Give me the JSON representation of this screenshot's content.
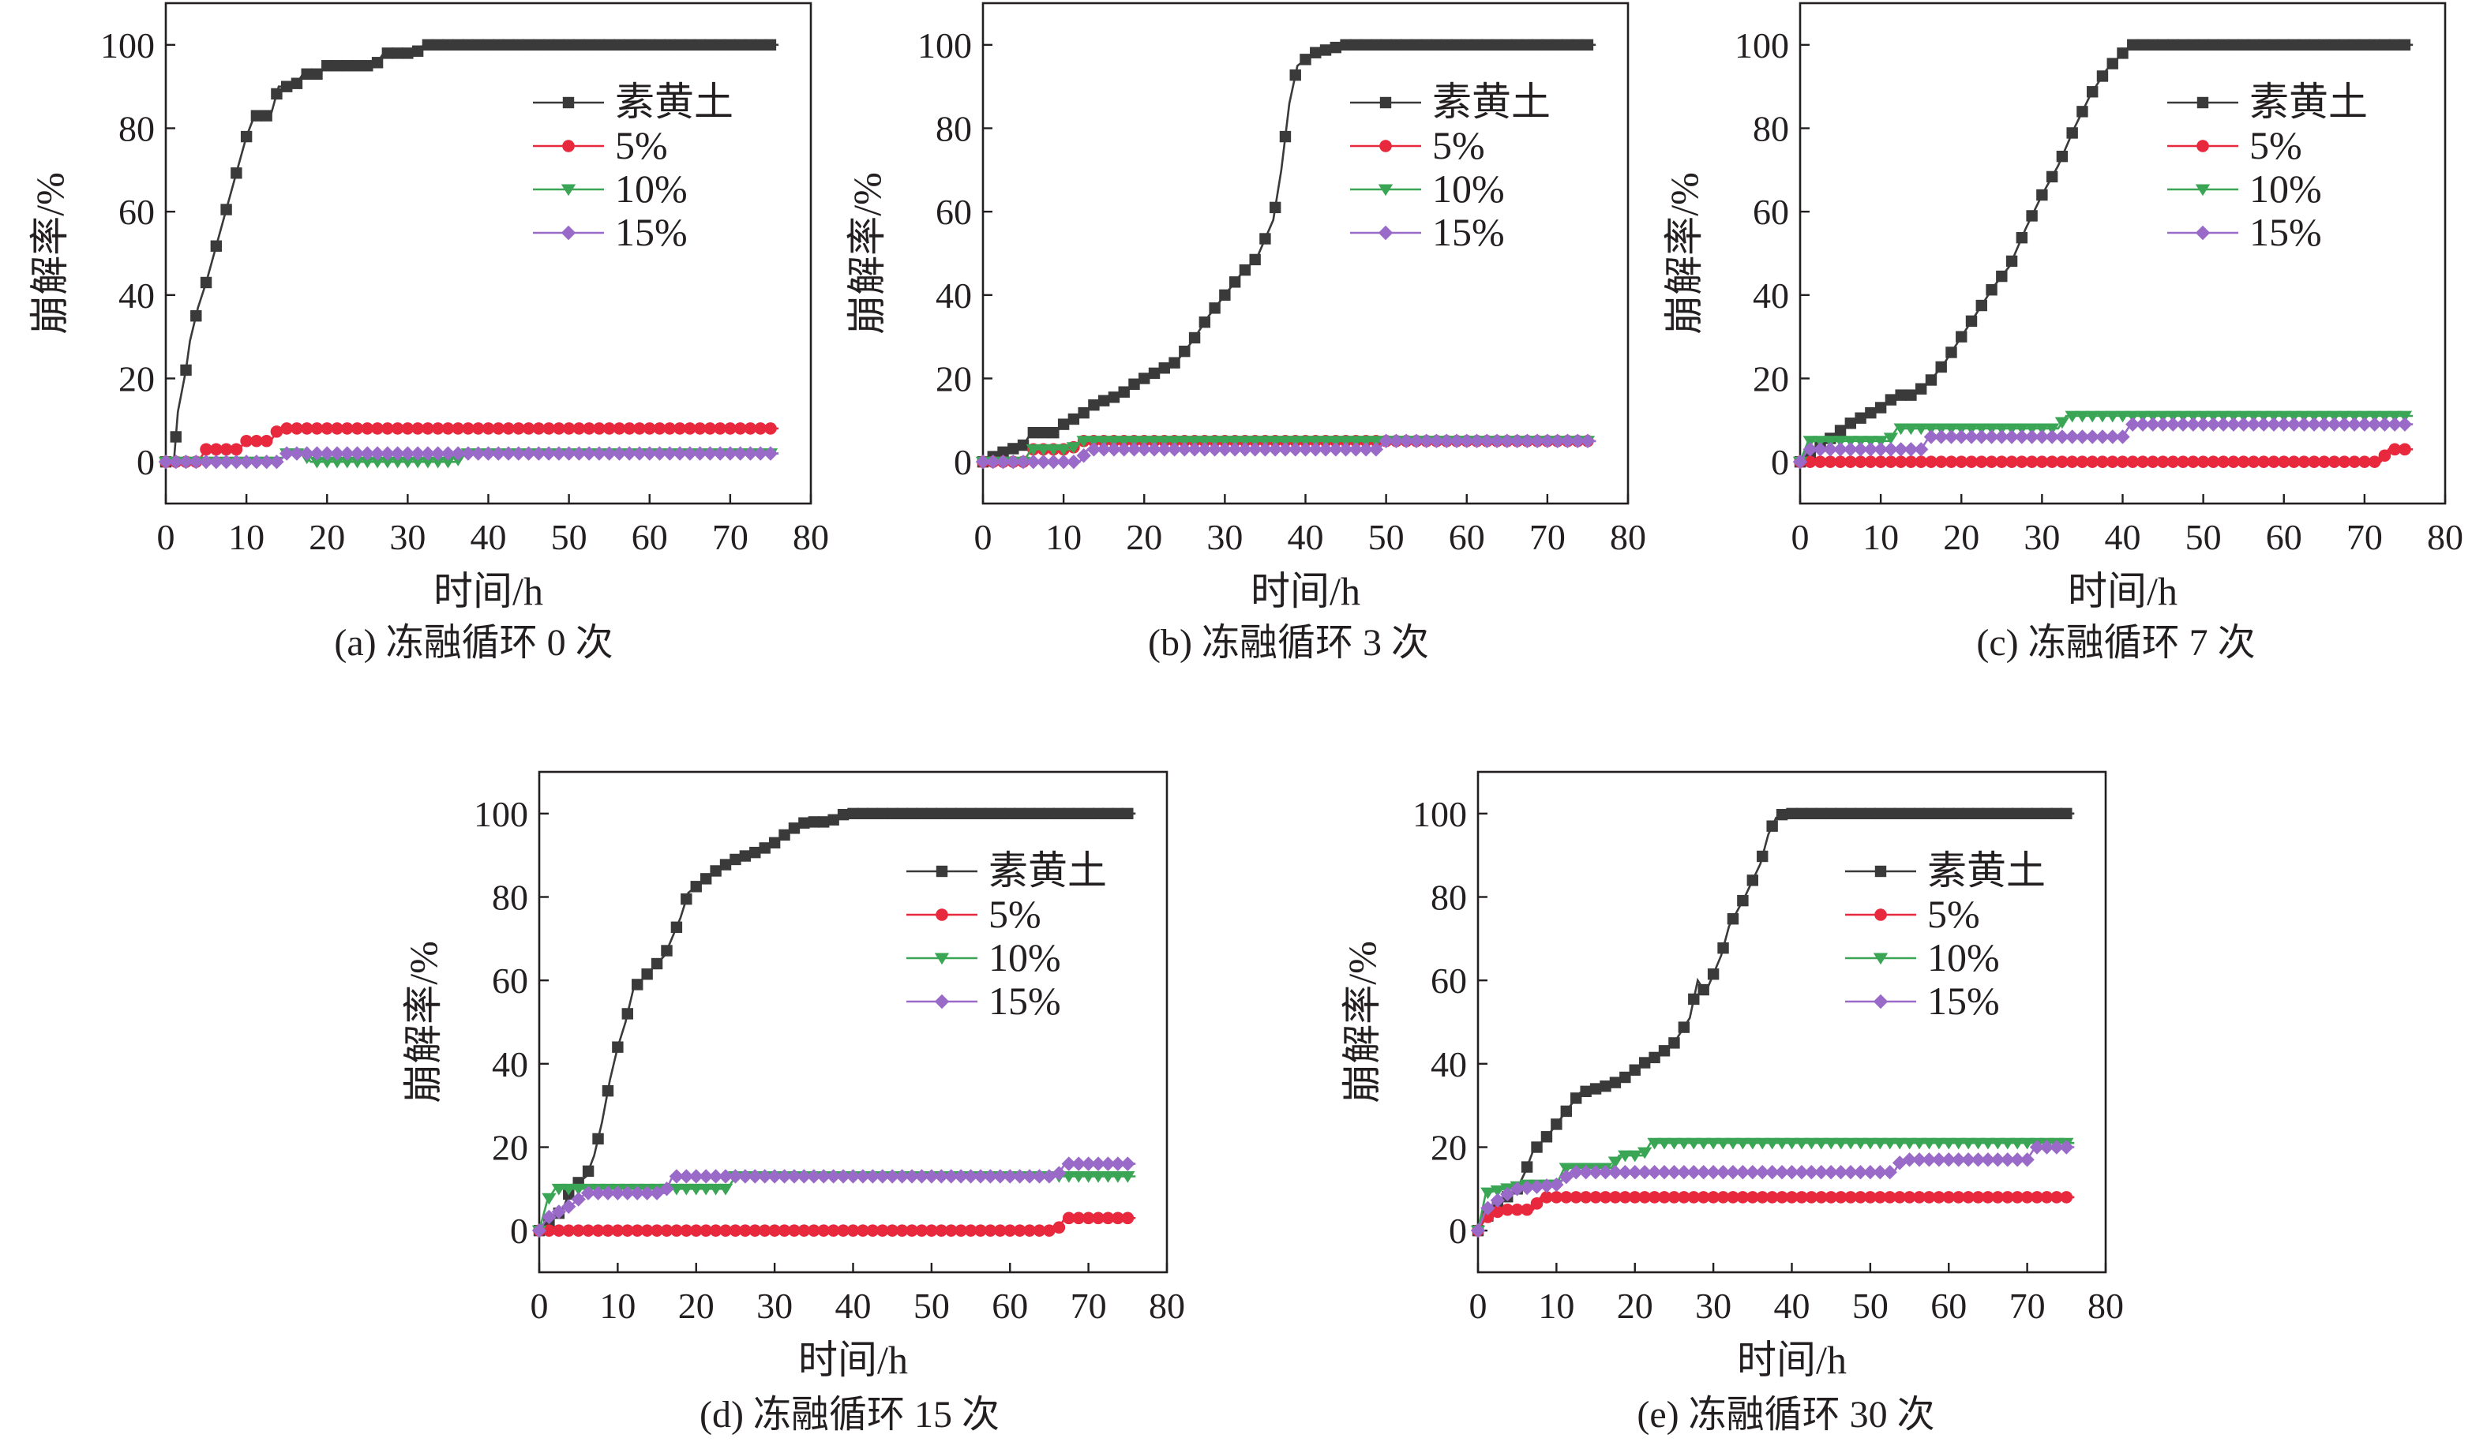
{
  "figure": {
    "colors": {
      "素黄土": "#3a3a3a",
      "5%": "#e8283c",
      "10%": "#3aa655",
      "15%": "#9a6ac8",
      "axis": "#231f20"
    },
    "markers": {
      "素黄土": "square",
      "5%": "circle",
      "10%": "triangle-down",
      "15%": "diamond"
    }
  },
  "chart_data": [
    {
      "type": "line",
      "caption": "(a) 冻融循环 0 次",
      "xlabel": "时间/h",
      "ylabel": "崩解率/%",
      "xlim": [
        0,
        80
      ],
      "ylim": [
        -10,
        110
      ],
      "xticks": [
        0,
        10,
        20,
        30,
        40,
        50,
        60,
        70,
        80
      ],
      "yticks": [
        0,
        20,
        40,
        60,
        80,
        100
      ],
      "legend_position": "upper-right",
      "xmax": 76,
      "series": [
        {
          "name": "素黄土",
          "points": [
            [
              0,
              0
            ],
            [
              1,
              0
            ],
            [
              1.5,
              12
            ],
            [
              2.5,
              22
            ],
            [
              3,
              29
            ],
            [
              4,
              37
            ],
            [
              5,
              43
            ],
            [
              6,
              50
            ],
            [
              7,
              57
            ],
            [
              8,
              64
            ],
            [
              9,
              71
            ],
            [
              10,
              78
            ],
            [
              11,
              83
            ],
            [
              13,
              83
            ],
            [
              14,
              90
            ],
            [
              16,
              90
            ],
            [
              17,
              93
            ],
            [
              19,
              93
            ],
            [
              20,
              95
            ],
            [
              26,
              95
            ],
            [
              27,
              98
            ],
            [
              31,
              98
            ],
            [
              32,
              100
            ],
            [
              76,
              100
            ]
          ]
        },
        {
          "name": "5%",
          "points": [
            [
              0,
              0
            ],
            [
              4,
              0
            ],
            [
              5,
              3
            ],
            [
              9,
              3
            ],
            [
              10,
              5
            ],
            [
              13,
              5
            ],
            [
              14,
              8
            ],
            [
              76,
              8
            ]
          ]
        },
        {
          "name": "10%",
          "points": [
            [
              0,
              0
            ],
            [
              14,
              0
            ],
            [
              15,
              2
            ],
            [
              17,
              2
            ],
            [
              18,
              0
            ],
            [
              36,
              0
            ],
            [
              37,
              2
            ],
            [
              76,
              2
            ]
          ]
        },
        {
          "name": "15%",
          "points": [
            [
              0,
              0
            ],
            [
              14,
              0
            ],
            [
              15,
              2
            ],
            [
              76,
              2
            ]
          ]
        }
      ]
    },
    {
      "type": "line",
      "caption": "(b) 冻融循环 3 次",
      "xlabel": "时间/h",
      "ylabel": "崩解率/%",
      "xlim": [
        0,
        80
      ],
      "ylim": [
        -10,
        110
      ],
      "xticks": [
        0,
        10,
        20,
        30,
        40,
        50,
        60,
        70,
        80
      ],
      "yticks": [
        0,
        20,
        40,
        60,
        80,
        100
      ],
      "legend_position": "upper-right",
      "xmax": 76,
      "series": [
        {
          "name": "素黄土",
          "points": [
            [
              0,
              0
            ],
            [
              2,
              2
            ],
            [
              5,
              4
            ],
            [
              6,
              7
            ],
            [
              9,
              7
            ],
            [
              10,
              9
            ],
            [
              12,
              11
            ],
            [
              14,
              14
            ],
            [
              17,
              16
            ],
            [
              19,
              19
            ],
            [
              22,
              22
            ],
            [
              24,
              24
            ],
            [
              26,
              29
            ],
            [
              28,
              35
            ],
            [
              30,
              40
            ],
            [
              32,
              45
            ],
            [
              34,
              49
            ],
            [
              36,
              58
            ],
            [
              37,
              70
            ],
            [
              38,
              86
            ],
            [
              39,
              95
            ],
            [
              41,
              98
            ],
            [
              43,
              99
            ],
            [
              45,
              100
            ],
            [
              76,
              100
            ]
          ]
        },
        {
          "name": "5%",
          "points": [
            [
              0,
              0
            ],
            [
              5,
              0
            ],
            [
              6,
              3
            ],
            [
              11,
              3
            ],
            [
              12,
              5
            ],
            [
              76,
              5
            ]
          ]
        },
        {
          "name": "10%",
          "points": [
            [
              0,
              0
            ],
            [
              5,
              0
            ],
            [
              6,
              3
            ],
            [
              11,
              3
            ],
            [
              12,
              5
            ],
            [
              76,
              5
            ]
          ]
        },
        {
          "name": "15%",
          "points": [
            [
              0,
              0
            ],
            [
              12,
              0
            ],
            [
              13,
              3
            ],
            [
              49,
              3
            ],
            [
              50,
              5
            ],
            [
              76,
              5
            ]
          ]
        }
      ]
    },
    {
      "type": "line",
      "caption": "(c) 冻融循环 7 次",
      "xlabel": "时间/h",
      "ylabel": "崩解率/%",
      "xlim": [
        0,
        80
      ],
      "ylim": [
        -10,
        110
      ],
      "xticks": [
        0,
        10,
        20,
        30,
        40,
        50,
        60,
        70,
        80
      ],
      "yticks": [
        0,
        20,
        40,
        60,
        80,
        100
      ],
      "legend_position": "upper-right",
      "xmax": 76,
      "series": [
        {
          "name": "素黄土",
          "points": [
            [
              0,
              0
            ],
            [
              2,
              3
            ],
            [
              4,
              6
            ],
            [
              6,
              9
            ],
            [
              8,
              11
            ],
            [
              10,
              13
            ],
            [
              12,
              16
            ],
            [
              14,
              16
            ],
            [
              16,
              19
            ],
            [
              18,
              24
            ],
            [
              20,
              30
            ],
            [
              22,
              36
            ],
            [
              24,
              42
            ],
            [
              26,
              47
            ],
            [
              28,
              56
            ],
            [
              30,
              64
            ],
            [
              32,
              71
            ],
            [
              34,
              80
            ],
            [
              36,
              88
            ],
            [
              38,
              94
            ],
            [
              40,
              98
            ],
            [
              41,
              100
            ],
            [
              76,
              100
            ]
          ]
        },
        {
          "name": "5%",
          "points": [
            [
              0,
              0
            ],
            [
              72,
              0
            ],
            [
              73,
              3
            ],
            [
              76,
              3
            ]
          ]
        },
        {
          "name": "10%",
          "points": [
            [
              0,
              0
            ],
            [
              1,
              5
            ],
            [
              11,
              5
            ],
            [
              12,
              8
            ],
            [
              32,
              8
            ],
            [
              33,
              11
            ],
            [
              76,
              11
            ]
          ]
        },
        {
          "name": "15%",
          "points": [
            [
              0,
              0
            ],
            [
              1,
              3
            ],
            [
              15,
              3
            ],
            [
              16,
              6
            ],
            [
              40,
              6
            ],
            [
              41,
              9
            ],
            [
              76,
              9
            ]
          ]
        }
      ]
    },
    {
      "type": "line",
      "caption": "(d) 冻融循环 15 次",
      "xlabel": "时间/h",
      "ylabel": "崩解率/%",
      "xlim": [
        0,
        80
      ],
      "ylim": [
        -10,
        110
      ],
      "xticks": [
        0,
        10,
        20,
        30,
        40,
        50,
        60,
        70,
        80
      ],
      "yticks": [
        0,
        20,
        40,
        60,
        80,
        100
      ],
      "legend_position": "upper-right",
      "xmax": 76,
      "series": [
        {
          "name": "素黄土",
          "points": [
            [
              0,
              0
            ],
            [
              3,
              5
            ],
            [
              4,
              10
            ],
            [
              6,
              13
            ],
            [
              7,
              18
            ],
            [
              8,
              26
            ],
            [
              9,
              36
            ],
            [
              10,
              44
            ],
            [
              11,
              50
            ],
            [
              12,
              58
            ],
            [
              14,
              62
            ],
            [
              16,
              66
            ],
            [
              18,
              75
            ],
            [
              19,
              81
            ],
            [
              21,
              84
            ],
            [
              23,
              87
            ],
            [
              25,
              89
            ],
            [
              28,
              91
            ],
            [
              30,
              93
            ],
            [
              32,
              96
            ],
            [
              34,
              98
            ],
            [
              37,
              98
            ],
            [
              39,
              100
            ],
            [
              76,
              100
            ]
          ]
        },
        {
          "name": "5%",
          "points": [
            [
              0,
              0
            ],
            [
              66,
              0
            ],
            [
              67,
              3
            ],
            [
              76,
              3
            ]
          ]
        },
        {
          "name": "10%",
          "points": [
            [
              0,
              0
            ],
            [
              1,
              7
            ],
            [
              2,
              10
            ],
            [
              24,
              10
            ],
            [
              25,
              13
            ],
            [
              76,
              13
            ]
          ]
        },
        {
          "name": "15%",
          "points": [
            [
              0,
              0
            ],
            [
              1,
              3
            ],
            [
              4,
              6
            ],
            [
              6,
              9
            ],
            [
              16,
              9
            ],
            [
              17,
              13
            ],
            [
              66,
              13
            ],
            [
              67,
              16
            ],
            [
              76,
              16
            ]
          ]
        }
      ]
    },
    {
      "type": "line",
      "caption": "(e) 冻融循环 30 次",
      "xlabel": "时间/h",
      "ylabel": "崩解率/%",
      "xlim": [
        0,
        80
      ],
      "ylim": [
        -10,
        110
      ],
      "xticks": [
        0,
        10,
        20,
        30,
        40,
        50,
        60,
        70,
        80
      ],
      "yticks": [
        0,
        20,
        40,
        60,
        80,
        100
      ],
      "legend_position": "upper-right",
      "xmax": 76,
      "series": [
        {
          "name": "素黄土",
          "points": [
            [
              0,
              0
            ],
            [
              1,
              3
            ],
            [
              3,
              7
            ],
            [
              5,
              10
            ],
            [
              6,
              14
            ],
            [
              7,
              19
            ],
            [
              9,
              23
            ],
            [
              11,
              28
            ],
            [
              13,
              33
            ],
            [
              15,
              34
            ],
            [
              17,
              35
            ],
            [
              19,
              37
            ],
            [
              21,
              40
            ],
            [
              23,
              42
            ],
            [
              25,
              45
            ],
            [
              27,
              51
            ],
            [
              28,
              60
            ],
            [
              29,
              57
            ],
            [
              31,
              66
            ],
            [
              32,
              73
            ],
            [
              34,
              80
            ],
            [
              36,
              88
            ],
            [
              37,
              95
            ],
            [
              38,
              99
            ],
            [
              39,
              100
            ],
            [
              76,
              100
            ]
          ]
        },
        {
          "name": "5%",
          "points": [
            [
              0,
              0
            ],
            [
              1,
              3
            ],
            [
              3,
              5
            ],
            [
              7,
              5
            ],
            [
              8,
              8
            ],
            [
              76,
              8
            ]
          ]
        },
        {
          "name": "10%",
          "points": [
            [
              0,
              0
            ],
            [
              1,
              9
            ],
            [
              6,
              11
            ],
            [
              10,
              11
            ],
            [
              11,
              15
            ],
            [
              17,
              15
            ],
            [
              18,
              18
            ],
            [
              21,
              18
            ],
            [
              22,
              21
            ],
            [
              76,
              21
            ]
          ]
        },
        {
          "name": "15%",
          "points": [
            [
              0,
              0
            ],
            [
              1,
              5
            ],
            [
              3,
              8
            ],
            [
              5,
              10
            ],
            [
              10,
              11
            ],
            [
              12,
              14
            ],
            [
              53,
              14
            ],
            [
              54,
              17
            ],
            [
              70,
              17
            ],
            [
              71,
              20
            ],
            [
              76,
              20
            ]
          ]
        }
      ]
    }
  ]
}
